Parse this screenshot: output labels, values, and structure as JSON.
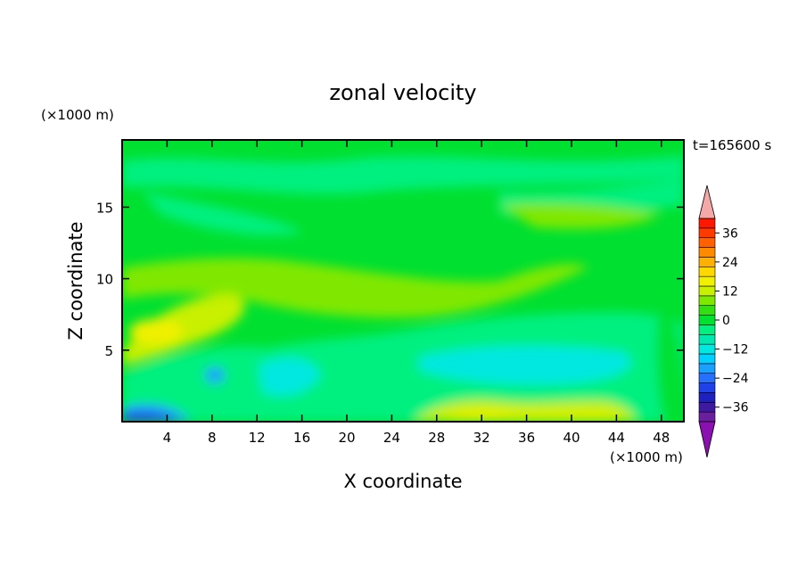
{
  "chart_data": {
    "type": "heatmap",
    "title": "zonal velocity",
    "xlabel": "X coordinate",
    "ylabel": "Z coordinate",
    "x_unit": "(×1000 m)",
    "y_unit": "(×1000 m)",
    "time_label": "t=165600 s",
    "xlim": [
      0,
      50
    ],
    "ylim": [
      0,
      19.7
    ],
    "x_ticks": [
      4,
      8,
      12,
      16,
      20,
      24,
      28,
      32,
      36,
      40,
      44,
      48
    ],
    "y_ticks": [
      5,
      10,
      15
    ],
    "colorbar": {
      "min": -42,
      "max": 42,
      "interval": 4,
      "tick_values": [
        36,
        24,
        12,
        0,
        -12,
        -24,
        -36
      ],
      "tick_labels": [
        "36",
        "24",
        "12",
        "0",
        "−12",
        "−24",
        "−36"
      ],
      "colors": [
        "#6a1f9e",
        "#3d1aa0",
        "#1f20c0",
        "#2040e8",
        "#2670ff",
        "#1aa0ff",
        "#00d0ff",
        "#00e8e0",
        "#00e8b0",
        "#00f080",
        "#00e030",
        "#30e010",
        "#80e800",
        "#c8f000",
        "#f0f000",
        "#ffd800",
        "#ffb000",
        "#ff8a00",
        "#ff6000",
        "#ff3a00",
        "#ff1800"
      ],
      "under_color": "#8a10b0",
      "over_color": "#f4a8a8"
    },
    "field_description_levels": {
      "background_level": 0,
      "features": [
        {
          "x": 3.5,
          "z": 6.0,
          "value": 10
        },
        {
          "x": 8.5,
          "z": 3.2,
          "value": -14
        },
        {
          "x": 4.0,
          "z": 0.3,
          "value": -26
        },
        {
          "x": 30.0,
          "z": 0.4,
          "value": 9
        },
        {
          "x": 40.0,
          "z": 0.5,
          "value": 8
        },
        {
          "x": 35.0,
          "z": 4.0,
          "value": -9
        },
        {
          "x": 15.0,
          "z": 3.5,
          "value": -7
        },
        {
          "x": 20.0,
          "z": 11.0,
          "value": 4
        },
        {
          "x": 38.0,
          "z": 14.5,
          "value": 3
        },
        {
          "x": 20.0,
          "z": 14.5,
          "value": -4
        }
      ]
    }
  }
}
